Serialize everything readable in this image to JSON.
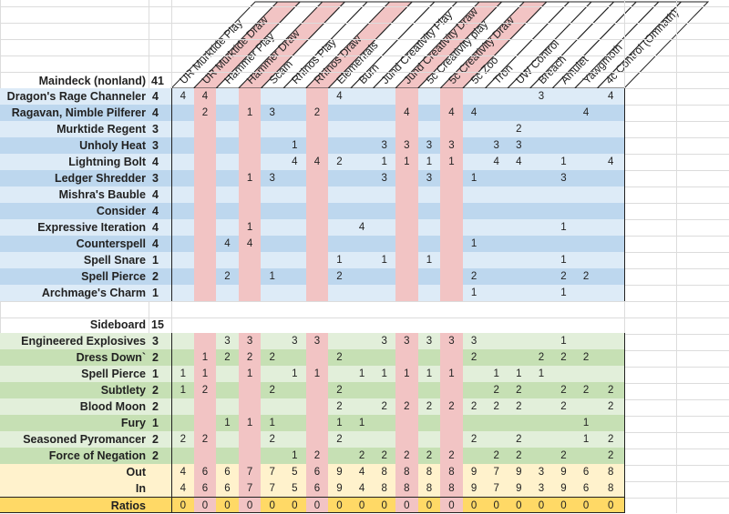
{
  "colors": {
    "pink": "#f2c4c4",
    "blue_light": "#ddebf7",
    "blue_dark": "#bdd7ee",
    "green_light": "#e2efda",
    "green_dark": "#c6e0b4",
    "yellow": "#fff2cc",
    "gold": "#ffd966"
  },
  "matchups": [
    "UR Murktide Play",
    "UR Murktide Draw",
    "Hammer Play",
    "Hammer Draw",
    "Scam",
    "Rhinos Play",
    "Rhinos Draw",
    "Elementals",
    "Burn",
    "Jund Creativity Play",
    "Jund Creativity Draw",
    "5c Creativity play",
    "5c Creativity Draw",
    "5c Zoo",
    "Tron",
    "UW Control",
    "Breach",
    "Amulet",
    "Yawgmoth",
    "4c Control (Omnath)"
  ],
  "pink_columns": [
    2,
    4,
    7,
    11,
    13
  ],
  "maindeck": {
    "label": "Maindeck (nonland)",
    "count": "41",
    "rows": [
      {
        "name": "Dragon's Rage Channeler",
        "count": "4",
        "values": [
          "4",
          "4",
          "",
          "",
          "",
          "",
          "",
          "4",
          "",
          "",
          "",
          "",
          "",
          "",
          "",
          "",
          "3",
          "",
          "",
          "4"
        ]
      },
      {
        "name": "Ragavan, Nimble Pilferer",
        "count": "4",
        "values": [
          "",
          "2",
          "",
          "1",
          "3",
          "",
          "2",
          "",
          "",
          "",
          "4",
          "",
          "4",
          "4",
          "",
          "",
          "",
          "",
          "4",
          ""
        ]
      },
      {
        "name": "Murktide Regent",
        "count": "3",
        "values": [
          "",
          "",
          "",
          "",
          "",
          "",
          "",
          "",
          "",
          "",
          "",
          "",
          "",
          "",
          "",
          "2",
          "",
          "",
          "",
          ""
        ]
      },
      {
        "name": "Unholy Heat",
        "count": "3",
        "values": [
          "",
          "",
          "",
          "",
          "",
          "1",
          "",
          "",
          "",
          "3",
          "3",
          "3",
          "3",
          "",
          "3",
          "3",
          "",
          "",
          "",
          ""
        ]
      },
      {
        "name": "Lightning Bolt",
        "count": "4",
        "values": [
          "",
          "",
          "",
          "",
          "",
          "4",
          "4",
          "2",
          "",
          "1",
          "1",
          "1",
          "1",
          "",
          "4",
          "4",
          "",
          "1",
          "",
          "4"
        ]
      },
      {
        "name": "Ledger Shredder",
        "count": "3",
        "values": [
          "",
          "",
          "",
          "1",
          "3",
          "",
          "",
          "",
          "",
          "3",
          "",
          "3",
          "",
          "1",
          "",
          "",
          "",
          "3",
          "",
          ""
        ]
      },
      {
        "name": "Mishra's Bauble",
        "count": "4",
        "values": [
          "",
          "",
          "",
          "",
          "",
          "",
          "",
          "",
          "",
          "",
          "",
          "",
          "",
          "",
          "",
          "",
          "",
          "",
          "",
          ""
        ]
      },
      {
        "name": "Consider",
        "count": "4",
        "values": [
          "",
          "",
          "",
          "",
          "",
          "",
          "",
          "",
          "",
          "",
          "",
          "",
          "",
          "",
          "",
          "",
          "",
          "",
          "",
          ""
        ]
      },
      {
        "name": "Expressive Iteration",
        "count": "4",
        "values": [
          "",
          "",
          "",
          "1",
          "",
          "",
          "",
          "",
          "4",
          "",
          "",
          "",
          "",
          "",
          "",
          "",
          "",
          "1",
          "",
          ""
        ]
      },
      {
        "name": "Counterspell",
        "count": "4",
        "values": [
          "",
          "",
          "4",
          "4",
          "",
          "",
          "",
          "",
          "",
          "",
          "",
          "",
          "",
          "1",
          "",
          "",
          "",
          "",
          "",
          ""
        ]
      },
      {
        "name": "Spell Snare",
        "count": "1",
        "values": [
          "",
          "",
          "",
          "",
          "",
          "",
          "",
          "1",
          "",
          "1",
          "",
          "1",
          "",
          "",
          "",
          "",
          "",
          "1",
          "",
          ""
        ]
      },
      {
        "name": "Spell Pierce",
        "count": "2",
        "values": [
          "",
          "",
          "2",
          "",
          "1",
          "",
          "",
          "2",
          "",
          "",
          "",
          "",
          "",
          "2",
          "",
          "",
          "",
          "2",
          "2",
          ""
        ]
      },
      {
        "name": "Archmage's  Charm",
        "count": "1",
        "values": [
          "",
          "",
          "",
          "",
          "",
          "",
          "",
          "",
          "",
          "",
          "",
          "",
          "",
          "1",
          "",
          "",
          "",
          "1",
          "",
          ""
        ]
      }
    ]
  },
  "sideboard": {
    "label": "Sideboard",
    "count": "15",
    "rows": [
      {
        "name": "Engineered Explosives",
        "count": "3",
        "values": [
          "",
          "",
          "3",
          "3",
          "",
          "3",
          "3",
          "",
          "",
          "3",
          "3",
          "3",
          "3",
          "3",
          "",
          "",
          "",
          "1",
          "",
          ""
        ]
      },
      {
        "name": "Dress Down`",
        "count": "2",
        "values": [
          "",
          "1",
          "2",
          "2",
          "2",
          "",
          "",
          "2",
          "",
          "",
          "",
          "",
          "",
          "2",
          "",
          "",
          "2",
          "2",
          "2",
          ""
        ]
      },
      {
        "name": "Spell Pierce",
        "count": "1",
        "values": [
          "1",
          "1",
          "",
          "1",
          "",
          "1",
          "1",
          "",
          "1",
          "1",
          "1",
          "1",
          "1",
          "",
          "1",
          "1",
          "1",
          "",
          "",
          ""
        ]
      },
      {
        "name": "Subtlety",
        "count": "2",
        "values": [
          "1",
          "2",
          "",
          "",
          "2",
          "",
          "",
          "2",
          "",
          "",
          "",
          "",
          "",
          "",
          "2",
          "2",
          "",
          "2",
          "2",
          "2"
        ]
      },
      {
        "name": "Blood Moon",
        "count": "2",
        "values": [
          "",
          "",
          "",
          "",
          "",
          "",
          "",
          "2",
          "",
          "2",
          "2",
          "2",
          "2",
          "2",
          "2",
          "2",
          "",
          "2",
          "",
          "2"
        ]
      },
      {
        "name": "Fury",
        "count": "1",
        "values": [
          "",
          "",
          "1",
          "1",
          "1",
          "",
          "",
          "1",
          "1",
          "",
          "",
          "",
          "",
          "",
          "",
          "",
          "",
          "",
          "1",
          ""
        ]
      },
      {
        "name": "Seasoned Pyromancer",
        "count": "2",
        "values": [
          "2",
          "2",
          "",
          "",
          "2",
          "",
          "",
          "2",
          "",
          "",
          "",
          "",
          "",
          "2",
          "",
          "2",
          "",
          "",
          "1",
          "2"
        ]
      },
      {
        "name": "Force of Negation",
        "count": "2",
        "values": [
          "",
          "",
          "",
          "",
          "",
          "1",
          "2",
          "",
          "2",
          "2",
          "2",
          "2",
          "2",
          "",
          "2",
          "2",
          "",
          "2",
          "",
          "2"
        ]
      }
    ]
  },
  "totals": [
    {
      "name": "Out",
      "values": [
        "4",
        "6",
        "6",
        "7",
        "7",
        "5",
        "6",
        "9",
        "4",
        "8",
        "8",
        "8",
        "8",
        "9",
        "7",
        "9",
        "3",
        "9",
        "6",
        "8"
      ]
    },
    {
      "name": "In",
      "values": [
        "4",
        "6",
        "6",
        "7",
        "7",
        "5",
        "6",
        "9",
        "4",
        "8",
        "8",
        "8",
        "8",
        "9",
        "7",
        "9",
        "3",
        "9",
        "6",
        "8"
      ]
    },
    {
      "name": "Ratios",
      "values": [
        "0",
        "0",
        "0",
        "0",
        "0",
        "0",
        "0",
        "0",
        "0",
        "0",
        "0",
        "0",
        "0",
        "0",
        "0",
        "0",
        "0",
        "0",
        "0",
        "0"
      ]
    }
  ]
}
